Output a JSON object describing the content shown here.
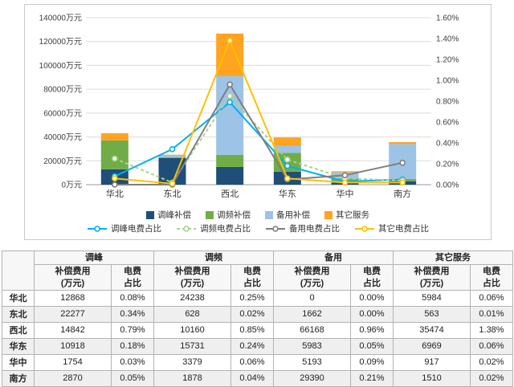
{
  "chart_data": {
    "type": "bar",
    "subtype": "stacked-bar-with-percent-lines",
    "title": "",
    "categories": [
      "华北",
      "东北",
      "西北",
      "华东",
      "华中",
      "南方"
    ],
    "bar_series": [
      {
        "name": "调峰补偿",
        "color": "#1f4e79",
        "values": [
          12868,
          22277,
          14842,
          10918,
          1754,
          2870
        ]
      },
      {
        "name": "调频补偿",
        "color": "#70ad47",
        "values": [
          24238,
          628,
          10160,
          15731,
          3379,
          1878
        ]
      },
      {
        "name": "备用补偿",
        "color": "#9dc3e6",
        "values": [
          0,
          1662,
          66168,
          5983,
          5193,
          29390
        ]
      },
      {
        "name": "其它服务",
        "color": "#ffa320",
        "values": [
          5984,
          563,
          35474,
          6969,
          917,
          1510
        ]
      }
    ],
    "line_series": [
      {
        "name": "调峰电费占比",
        "color": "#00b0f0",
        "dash": "",
        "values": [
          0.08,
          0.34,
          0.79,
          0.18,
          0.03,
          0.05
        ]
      },
      {
        "name": "调频电费占比",
        "color": "#a9d18e",
        "dash": "4 3",
        "values": [
          0.25,
          0.02,
          0.85,
          0.24,
          0.06,
          0.04
        ]
      },
      {
        "name": "备用电费占比",
        "color": "#7f7f7f",
        "dash": "",
        "values": [
          0.0,
          0.0,
          0.96,
          0.05,
          0.09,
          0.21
        ]
      },
      {
        "name": "其它电费占比",
        "color": "#ffc000",
        "dash": "",
        "values": [
          0.06,
          0.01,
          1.38,
          0.06,
          0.02,
          0.02
        ]
      }
    ],
    "left_axis": {
      "min": 0,
      "max": 140000,
      "step": 20000,
      "unit": "万元"
    },
    "right_axis": {
      "min": 0,
      "max": 1.6,
      "step": 0.2,
      "unit": "%"
    },
    "grid": true,
    "legend_position": "bottom"
  },
  "table": {
    "corner": "",
    "groups": [
      {
        "label": "调峰"
      },
      {
        "label": "调频"
      },
      {
        "label": "备用"
      },
      {
        "label": "其它服务"
      }
    ],
    "sub_headers": [
      "补偿费用\n(万元)",
      "电费\n占比"
    ],
    "rows": [
      {
        "label": "华北",
        "values": [
          "12868",
          "0.08%",
          "24238",
          "0.25%",
          "0",
          "0.00%",
          "5984",
          "0.06%"
        ]
      },
      {
        "label": "东北",
        "values": [
          "22277",
          "0.34%",
          "628",
          "0.02%",
          "1662",
          "0.00%",
          "563",
          "0.01%"
        ]
      },
      {
        "label": "西北",
        "values": [
          "14842",
          "0.79%",
          "10160",
          "0.85%",
          "66168",
          "0.96%",
          "35474",
          "1.38%"
        ]
      },
      {
        "label": "华东",
        "values": [
          "10918",
          "0.18%",
          "15731",
          "0.24%",
          "5983",
          "0.05%",
          "6969",
          "0.06%"
        ]
      },
      {
        "label": "华中",
        "values": [
          "1754",
          "0.03%",
          "3379",
          "0.06%",
          "5193",
          "0.09%",
          "917",
          "0.02%"
        ]
      },
      {
        "label": "南方",
        "values": [
          "2870",
          "0.05%",
          "1878",
          "0.04%",
          "29390",
          "0.21%",
          "1510",
          "0.02%"
        ]
      }
    ]
  }
}
